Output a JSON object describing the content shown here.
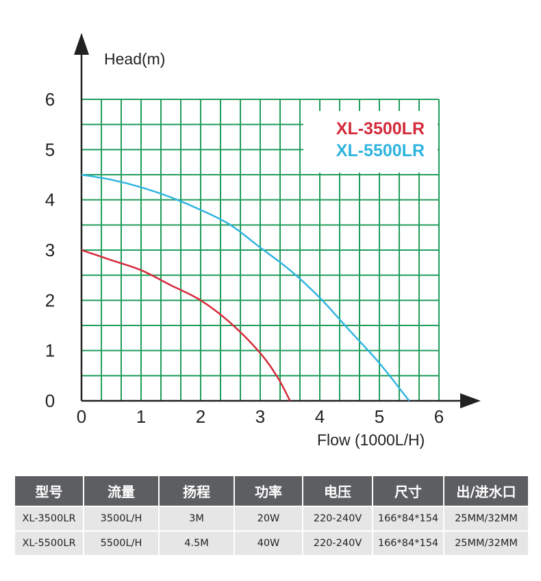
{
  "chart_data": {
    "type": "line",
    "xlabel": "Flow (1000L/H)",
    "ylabel": "Head(m)",
    "xlim": [
      0,
      6
    ],
    "ylim": [
      0,
      6
    ],
    "x_ticks": [
      "0",
      "1",
      "2",
      "3",
      "4",
      "5",
      "6"
    ],
    "y_ticks": [
      "0",
      "1",
      "2",
      "3",
      "4",
      "5",
      "6"
    ],
    "grid": true,
    "legend_position": "top-right",
    "series": [
      {
        "name": "XL-3500LR",
        "color": "#d42a3a",
        "x": [
          0,
          0.5,
          1.0,
          1.5,
          2.0,
          2.5,
          3.0,
          3.3,
          3.5
        ],
        "y": [
          3.0,
          2.8,
          2.6,
          2.3,
          2.0,
          1.55,
          0.95,
          0.45,
          0.0
        ]
      },
      {
        "name": "XL-5500LR",
        "color": "#2fb4e0",
        "x": [
          0,
          0.5,
          1.0,
          1.5,
          2.0,
          2.5,
          3.0,
          3.5,
          4.0,
          4.5,
          5.0,
          5.5
        ],
        "y": [
          4.5,
          4.4,
          4.25,
          4.05,
          3.8,
          3.5,
          3.05,
          2.6,
          2.05,
          1.4,
          0.75,
          0.0
        ]
      }
    ]
  },
  "colors": {
    "grid": "#1f9c5a",
    "axis": "#222222",
    "table_header": "#5c5e61",
    "table_cell": "#e6e6e6"
  },
  "table": {
    "headers": [
      "型号",
      "流量",
      "扬程",
      "功率",
      "电压",
      "尺寸",
      "出/进水口"
    ],
    "rows": [
      [
        "XL-3500LR",
        "3500L/H",
        "3M",
        "20W",
        "220-240V",
        "166*84*154",
        "25MM/32MM"
      ],
      [
        "XL-5500LR",
        "5500L/H",
        "4.5M",
        "40W",
        "220-240V",
        "166*84*154",
        "25MM/32MM"
      ]
    ]
  }
}
